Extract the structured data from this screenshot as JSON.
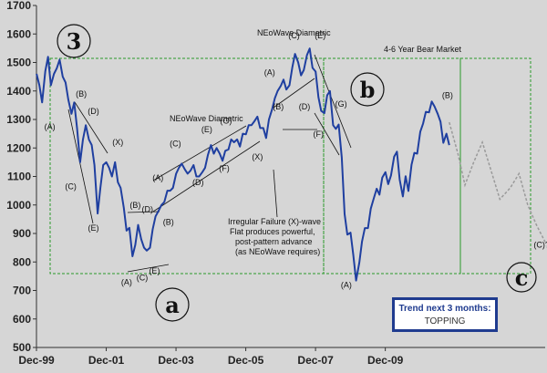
{
  "chart_data": {
    "type": "line",
    "title": "",
    "xlabel": "",
    "ylabel": "",
    "x_ticks": [
      "Dec-99",
      "Dec-01",
      "Dec-03",
      "Dec-05",
      "Dec-07",
      "Dec-09"
    ],
    "y_ticks": [
      500,
      600,
      700,
      800,
      900,
      1000,
      1100,
      1200,
      1300,
      1400,
      1500,
      1600,
      1700
    ],
    "ylim": [
      500,
      1700
    ],
    "xlim": [
      1999.917,
      2014.5
    ],
    "grid": false,
    "line_color": "#1f3fa0",
    "projection_color": "#9a9a9a",
    "series": [
      {
        "points": [
          [
            1999.92,
            1460
          ],
          [
            2000.0,
            1420
          ],
          [
            2000.08,
            1360
          ],
          [
            2000.17,
            1470
          ],
          [
            2000.25,
            1520
          ],
          [
            2000.33,
            1420
          ],
          [
            2000.42,
            1460
          ],
          [
            2000.5,
            1480
          ],
          [
            2000.58,
            1510
          ],
          [
            2000.67,
            1450
          ],
          [
            2000.75,
            1430
          ],
          [
            2000.83,
            1370
          ],
          [
            2000.92,
            1320
          ],
          [
            2001.0,
            1360
          ],
          [
            2001.08,
            1270
          ],
          [
            2001.17,
            1150
          ],
          [
            2001.25,
            1230
          ],
          [
            2001.33,
            1280
          ],
          [
            2001.42,
            1230
          ],
          [
            2001.5,
            1210
          ],
          [
            2001.58,
            1140
          ],
          [
            2001.67,
            970
          ],
          [
            2001.75,
            1060
          ],
          [
            2001.83,
            1140
          ],
          [
            2001.92,
            1150
          ],
          [
            2002.0,
            1130
          ],
          [
            2002.08,
            1100
          ],
          [
            2002.17,
            1150
          ],
          [
            2002.25,
            1080
          ],
          [
            2002.33,
            1060
          ],
          [
            2002.42,
            990
          ],
          [
            2002.5,
            910
          ],
          [
            2002.58,
            920
          ],
          [
            2002.67,
            820
          ],
          [
            2002.75,
            860
          ],
          [
            2002.83,
            930
          ],
          [
            2002.92,
            880
          ],
          [
            2003.0,
            850
          ],
          [
            2003.08,
            840
          ],
          [
            2003.17,
            850
          ],
          [
            2003.25,
            915
          ],
          [
            2003.33,
            960
          ],
          [
            2003.42,
            980
          ],
          [
            2003.5,
            1000
          ],
          [
            2003.58,
            1010
          ],
          [
            2003.67,
            1050
          ],
          [
            2003.75,
            1050
          ],
          [
            2003.83,
            1060
          ],
          [
            2003.92,
            1110
          ],
          [
            2004.0,
            1130
          ],
          [
            2004.08,
            1145
          ],
          [
            2004.17,
            1125
          ],
          [
            2004.25,
            1110
          ],
          [
            2004.33,
            1120
          ],
          [
            2004.42,
            1140
          ],
          [
            2004.5,
            1100
          ],
          [
            2004.58,
            1100
          ],
          [
            2004.67,
            1115
          ],
          [
            2004.75,
            1130
          ],
          [
            2004.83,
            1175
          ],
          [
            2004.92,
            1210
          ],
          [
            2005.0,
            1180
          ],
          [
            2005.08,
            1200
          ],
          [
            2005.17,
            1180
          ],
          [
            2005.25,
            1155
          ],
          [
            2005.33,
            1190
          ],
          [
            2005.42,
            1195
          ],
          [
            2005.5,
            1230
          ],
          [
            2005.58,
            1220
          ],
          [
            2005.67,
            1230
          ],
          [
            2005.75,
            1205
          ],
          [
            2005.83,
            1250
          ],
          [
            2005.92,
            1248
          ],
          [
            2006.0,
            1280
          ],
          [
            2006.08,
            1280
          ],
          [
            2006.17,
            1295
          ],
          [
            2006.25,
            1310
          ],
          [
            2006.33,
            1270
          ],
          [
            2006.42,
            1270
          ],
          [
            2006.5,
            1235
          ],
          [
            2006.58,
            1300
          ],
          [
            2006.67,
            1335
          ],
          [
            2006.75,
            1375
          ],
          [
            2006.83,
            1400
          ],
          [
            2006.92,
            1418
          ],
          [
            2007.0,
            1440
          ],
          [
            2007.08,
            1405
          ],
          [
            2007.17,
            1420
          ],
          [
            2007.25,
            1482
          ],
          [
            2007.33,
            1530
          ],
          [
            2007.42,
            1500
          ],
          [
            2007.5,
            1455
          ],
          [
            2007.58,
            1473
          ],
          [
            2007.67,
            1526
          ],
          [
            2007.75,
            1549
          ],
          [
            2007.83,
            1481
          ],
          [
            2007.92,
            1468
          ],
          [
            2008.0,
            1378
          ],
          [
            2008.08,
            1330
          ],
          [
            2008.17,
            1322
          ],
          [
            2008.25,
            1385
          ],
          [
            2008.33,
            1400
          ],
          [
            2008.42,
            1280
          ],
          [
            2008.5,
            1267
          ],
          [
            2008.58,
            1282
          ],
          [
            2008.67,
            1166
          ],
          [
            2008.75,
            968
          ],
          [
            2008.83,
            896
          ],
          [
            2008.92,
            903
          ],
          [
            2009.0,
            825
          ],
          [
            2009.08,
            735
          ],
          [
            2009.17,
            797
          ],
          [
            2009.25,
            872
          ],
          [
            2009.33,
            919
          ],
          [
            2009.42,
            919
          ],
          [
            2009.5,
            987
          ],
          [
            2009.58,
            1020
          ],
          [
            2009.67,
            1057
          ],
          [
            2009.75,
            1036
          ],
          [
            2009.83,
            1096
          ],
          [
            2009.92,
            1115
          ],
          [
            2010.0,
            1073
          ],
          [
            2010.08,
            1104
          ],
          [
            2010.17,
            1169
          ],
          [
            2010.25,
            1187
          ],
          [
            2010.33,
            1089
          ],
          [
            2010.42,
            1030
          ],
          [
            2010.5,
            1101
          ],
          [
            2010.58,
            1049
          ],
          [
            2010.67,
            1141
          ],
          [
            2010.75,
            1183
          ],
          [
            2010.83,
            1180
          ],
          [
            2010.92,
            1257
          ],
          [
            2011.0,
            1286
          ],
          [
            2011.08,
            1327
          ],
          [
            2011.17,
            1325
          ],
          [
            2011.25,
            1363
          ],
          [
            2011.33,
            1345
          ],
          [
            2011.42,
            1320
          ],
          [
            2011.5,
            1292
          ],
          [
            2011.58,
            1218
          ],
          [
            2011.67,
            1250
          ],
          [
            2011.75,
            1210
          ]
        ]
      },
      {
        "name": "projection",
        "points": [
          [
            2011.75,
            1290
          ],
          [
            2012.0,
            1180
          ],
          [
            2012.2,
            1070
          ],
          [
            2012.45,
            1150
          ],
          [
            2012.7,
            1220
          ],
          [
            2012.95,
            1120
          ],
          [
            2013.2,
            1020
          ],
          [
            2013.5,
            1060
          ],
          [
            2013.75,
            1110
          ],
          [
            2014.0,
            1000
          ],
          [
            2014.25,
            930
          ],
          [
            2014.5,
            870
          ]
        ]
      }
    ],
    "wave_labels": [
      {
        "text": "(A)",
        "x": 2000.3,
        "y": 1265
      },
      {
        "text": "(B)",
        "x": 2001.2,
        "y": 1380
      },
      {
        "text": "(C)",
        "x": 2000.9,
        "y": 1055
      },
      {
        "text": "(D)",
        "x": 2001.55,
        "y": 1320
      },
      {
        "text": "(E)",
        "x": 2001.55,
        "y": 910
      },
      {
        "text": "(X)",
        "x": 2002.25,
        "y": 1210
      },
      {
        "text": "(A)",
        "x": 2002.5,
        "y": 720
      },
      {
        "text": "(B)",
        "x": 2002.75,
        "y": 990
      },
      {
        "text": "(C)",
        "x": 2002.95,
        "y": 735
      },
      {
        "text": "(D)",
        "x": 2003.1,
        "y": 975
      },
      {
        "text": "(E)",
        "x": 2003.3,
        "y": 760
      },
      {
        "text": "(A)",
        "x": 2003.4,
        "y": 1085
      },
      {
        "text": "(B)",
        "x": 2003.7,
        "y": 930
      },
      {
        "text": "(C)",
        "x": 2003.9,
        "y": 1205
      },
      {
        "text": "(D)",
        "x": 2004.55,
        "y": 1070
      },
      {
        "text": "(E)",
        "x": 2004.8,
        "y": 1255
      },
      {
        "text": "(F)",
        "x": 2005.3,
        "y": 1120
      },
      {
        "text": "(G)",
        "x": 2005.35,
        "y": 1285
      },
      {
        "text": "(X)",
        "x": 2006.25,
        "y": 1160
      },
      {
        "text": "(A)",
        "x": 2006.6,
        "y": 1455
      },
      {
        "text": "(B)",
        "x": 2006.85,
        "y": 1335
      },
      {
        "text": "(C)",
        "x": 2007.3,
        "y": 1585
      },
      {
        "text": "(D)",
        "x": 2007.6,
        "y": 1335
      },
      {
        "text": "(E)",
        "x": 2008.05,
        "y": 1585
      },
      {
        "text": "(F)",
        "x": 2008.0,
        "y": 1240
      },
      {
        "text": "(G)",
        "x": 2008.65,
        "y": 1345
      },
      {
        "text": "(A)",
        "x": 2008.8,
        "y": 710
      },
      {
        "text": "(B)",
        "x": 2011.7,
        "y": 1375
      },
      {
        "text": "(C)?",
        "x": 2014.4,
        "y": 850
      }
    ],
    "annotations": {
      "diametric_1": "NEoWave Diametric",
      "diametric_2": "NEoWave Diametric",
      "bear_market": "4-6 Year Bear Market",
      "failure_note": [
        "Irregular Failure (X)-wave",
        "Flat produces powerful,",
        "post-pattern advance",
        "(as NEoWave requires)"
      ],
      "big_labels": [
        "3",
        "a",
        "b",
        "c"
      ]
    }
  },
  "trend_box": {
    "title": "Trend next 3 months:",
    "value": "TOPPING"
  }
}
